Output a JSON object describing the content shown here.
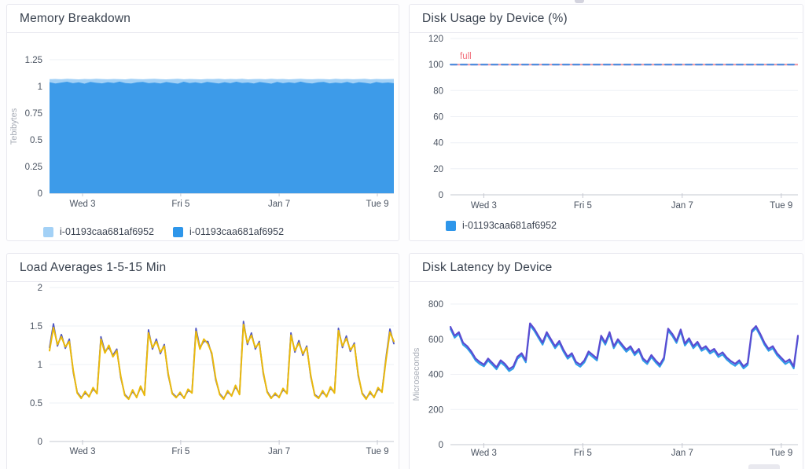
{
  "panels": [
    {
      "title": "Memory Breakdown",
      "legend": [
        {
          "color": "#a3d1f6",
          "label": "i-01193caa681af6952"
        },
        {
          "color": "#2e96ea",
          "label": "i-01193caa681af6952"
        }
      ]
    },
    {
      "title": "Disk Usage by Device (%)",
      "legend": [
        {
          "color": "#2e96ea",
          "label": "i-01193caa681af6952"
        }
      ]
    },
    {
      "title": "Load Averages 1-5-15 Min",
      "legend": []
    },
    {
      "title": "Disk Latency by Device",
      "legend": []
    }
  ],
  "chart_data": [
    {
      "type": "area",
      "title": "Memory Breakdown",
      "ylabel": "Tebibytes",
      "ylim": [
        0,
        1.25
      ],
      "grid": true,
      "legend_position": "bottom",
      "yticks": [
        [
          0,
          "0"
        ],
        [
          0.25,
          "0.25"
        ],
        [
          0.5,
          "0.5"
        ],
        [
          0.75,
          "0.75"
        ],
        [
          1,
          "1"
        ],
        [
          1.25,
          "1.25"
        ]
      ],
      "xticks": {
        "fracs": [
          0.096,
          0.381,
          0.667,
          0.952
        ],
        "labels": [
          "Wed 3",
          "Fri 5",
          "Jan 7",
          "Tue 9"
        ]
      },
      "series": [
        {
          "legend_label": "i-01193caa681af6952",
          "color": "#a3d1f6",
          "values": [
            1.068,
            1.07,
            1.067,
            1.071,
            1.069,
            1.066,
            1.07,
            1.068,
            1.072,
            1.069,
            1.067,
            1.07,
            1.068,
            1.066,
            1.071,
            1.069,
            1.067,
            1.07,
            1.072,
            1.068,
            1.066,
            1.069,
            1.071,
            1.067,
            1.07,
            1.068,
            1.066,
            1.07,
            1.069,
            1.072,
            1.067,
            1.07,
            1.068,
            1.071,
            1.066,
            1.069,
            1.07,
            1.067,
            1.071,
            1.068,
            1.07,
            1.066,
            1.069,
            1.072,
            1.068,
            1.067,
            1.07,
            1.069,
            1.066,
            1.071,
            1.068,
            1.07,
            1.067,
            1.069,
            1.072,
            1.066,
            1.07,
            1.068,
            1.069,
            1.07
          ]
        },
        {
          "legend_label": "i-01193caa681af6952",
          "color": "#3d9be9",
          "values": [
            1.04,
            1.028,
            1.036,
            1.044,
            1.03,
            1.038,
            1.026,
            1.042,
            1.034,
            1.029,
            1.04,
            1.032,
            1.045,
            1.031,
            1.027,
            1.039,
            1.043,
            1.03,
            1.036,
            1.028,
            1.041,
            1.033,
            1.026,
            1.044,
            1.031,
            1.038,
            1.029,
            1.042,
            1.035,
            1.027,
            1.04,
            1.03,
            1.044,
            1.032,
            1.037,
            1.028,
            1.041,
            1.034,
            1.026,
            1.043,
            1.03,
            1.039,
            1.031,
            1.045,
            1.033,
            1.027,
            1.038,
            1.042,
            1.029,
            1.036,
            1.03,
            1.043,
            1.028,
            1.04,
            1.034,
            1.026,
            1.041,
            1.032,
            1.037,
            1.03
          ]
        }
      ]
    },
    {
      "type": "line",
      "title": "Disk Usage by Device (%)",
      "ylim": [
        0,
        120
      ],
      "grid": true,
      "legend_position": "bottom",
      "yticks": [
        [
          0,
          "0"
        ],
        [
          20,
          "20"
        ],
        [
          40,
          "40"
        ],
        [
          60,
          "60"
        ],
        [
          80,
          "80"
        ],
        [
          100,
          "100"
        ],
        [
          120,
          "120"
        ]
      ],
      "xticks": {
        "fracs": [
          0.096,
          0.381,
          0.667,
          0.952
        ],
        "labels": [
          "Wed 3",
          "Fri 5",
          "Jan 7",
          "Tue 9"
        ]
      },
      "annotations": [
        {
          "label": "full",
          "value": 100,
          "text_color": "#f2737f",
          "line_color": "#ee95a2"
        }
      ],
      "series": [
        {
          "legend_label": "i-01193caa681af6952",
          "color": "#3f87e0",
          "width": 2,
          "dash": [
            8,
            5
          ],
          "values": [
            100,
            100
          ]
        }
      ]
    },
    {
      "type": "line",
      "title": "Load Averages 1-5-15 Min",
      "ylim": [
        0,
        2
      ],
      "grid": true,
      "yticks": [
        [
          0,
          "0"
        ],
        [
          0.5,
          "0.5"
        ],
        [
          1,
          "1"
        ],
        [
          1.5,
          "1.5"
        ],
        [
          2,
          "2"
        ]
      ],
      "xticks": {
        "fracs": [
          0.096,
          0.381,
          0.667,
          0.952
        ],
        "labels": [
          "Wed 3",
          "Fri 5",
          "Jan 7",
          "Tue 9"
        ]
      },
      "series": [
        {
          "color": "#4d55c4",
          "width": 1.8,
          "values": [
            1.22,
            1.53,
            1.24,
            1.39,
            1.21,
            1.33,
            0.9,
            0.64,
            0.57,
            0.63,
            0.59,
            0.68,
            0.63,
            1.36,
            1.17,
            1.22,
            1.12,
            1.2,
            0.83,
            0.61,
            0.56,
            0.65,
            0.58,
            0.7,
            0.61,
            1.45,
            1.2,
            1.33,
            1.14,
            1.26,
            0.86,
            0.63,
            0.58,
            0.62,
            0.57,
            0.66,
            0.64,
            1.47,
            1.22,
            1.3,
            1.3,
            1.13,
            0.8,
            0.62,
            0.56,
            0.64,
            0.6,
            0.71,
            0.62,
            1.56,
            1.26,
            1.41,
            1.2,
            1.3,
            0.88,
            0.65,
            0.57,
            0.61,
            0.58,
            0.67,
            0.63,
            1.41,
            1.16,
            1.31,
            1.12,
            1.24,
            0.84,
            0.61,
            0.57,
            0.64,
            0.59,
            0.69,
            0.64,
            1.47,
            1.22,
            1.37,
            1.17,
            1.28,
            0.85,
            0.63,
            0.56,
            0.63,
            0.58,
            0.68,
            0.65,
            1.08,
            1.46,
            1.27
          ]
        },
        {
          "color": "#eab90c",
          "width": 2,
          "values": [
            1.18,
            1.48,
            1.26,
            1.36,
            1.23,
            1.3,
            0.92,
            0.63,
            0.56,
            0.65,
            0.58,
            0.7,
            0.62,
            1.33,
            1.15,
            1.25,
            1.1,
            1.18,
            0.85,
            0.6,
            0.55,
            0.67,
            0.57,
            0.72,
            0.6,
            1.41,
            1.22,
            1.3,
            1.16,
            1.24,
            0.88,
            0.62,
            0.57,
            0.64,
            0.56,
            0.68,
            0.63,
            1.43,
            1.2,
            1.33,
            1.27,
            1.15,
            0.82,
            0.61,
            0.55,
            0.66,
            0.59,
            0.73,
            0.61,
            1.52,
            1.28,
            1.38,
            1.22,
            1.28,
            0.9,
            0.64,
            0.56,
            0.63,
            0.57,
            0.69,
            0.62,
            1.38,
            1.18,
            1.28,
            1.14,
            1.22,
            0.86,
            0.6,
            0.56,
            0.66,
            0.58,
            0.71,
            0.63,
            1.44,
            1.24,
            1.34,
            1.19,
            1.26,
            0.87,
            0.62,
            0.55,
            0.65,
            0.57,
            0.7,
            0.64,
            1.05,
            1.42,
            1.3
          ]
        }
      ]
    },
    {
      "type": "line",
      "title": "Disk Latency by Device",
      "ylabel": "Microseconds",
      "ylim": [
        0,
        800
      ],
      "grid": true,
      "yticks": [
        [
          0,
          "0"
        ],
        [
          200,
          "200"
        ],
        [
          400,
          "400"
        ],
        [
          600,
          "600"
        ],
        [
          800,
          "800"
        ]
      ],
      "xticks": {
        "fracs": [
          0.096,
          0.381,
          0.667,
          0.952
        ],
        "labels": [
          "Wed 3",
          "Fri 5",
          "Jan 7",
          "Tue 9"
        ]
      },
      "series": [
        {
          "color": "#2f9fe8",
          "width": 2,
          "values": [
            658,
            608,
            630,
            568,
            548,
            518,
            478,
            458,
            445,
            478,
            453,
            428,
            468,
            448,
            418,
            433,
            488,
            508,
            468,
            678,
            648,
            608,
            568,
            628,
            588,
            548,
            578,
            528,
            488,
            508,
            458,
            443,
            468,
            518,
            498,
            478,
            608,
            568,
            628,
            548,
            588,
            558,
            528,
            548,
            508,
            533,
            478,
            458,
            498,
            468,
            443,
            483,
            648,
            618,
            578,
            643,
            563,
            593,
            548,
            573,
            533,
            548,
            518,
            533,
            498,
            513,
            483,
            463,
            448,
            468,
            433,
            453,
            638,
            663,
            618,
            568,
            533,
            548,
            508,
            483,
            458,
            473,
            433,
            608
          ]
        },
        {
          "color": "#5b4bd1",
          "width": 2.2,
          "values": [
            670,
            620,
            640,
            580,
            560,
            530,
            490,
            470,
            455,
            490,
            465,
            440,
            480,
            460,
            430,
            445,
            500,
            520,
            480,
            690,
            660,
            620,
            580,
            640,
            600,
            560,
            590,
            540,
            500,
            520,
            470,
            455,
            480,
            530,
            510,
            490,
            620,
            580,
            640,
            560,
            600,
            570,
            540,
            560,
            520,
            545,
            490,
            470,
            510,
            480,
            455,
            495,
            660,
            630,
            590,
            655,
            575,
            605,
            560,
            585,
            545,
            560,
            530,
            545,
            510,
            525,
            495,
            475,
            460,
            480,
            445,
            465,
            650,
            675,
            630,
            580,
            545,
            560,
            520,
            495,
            470,
            485,
            445,
            620
          ]
        }
      ]
    }
  ]
}
